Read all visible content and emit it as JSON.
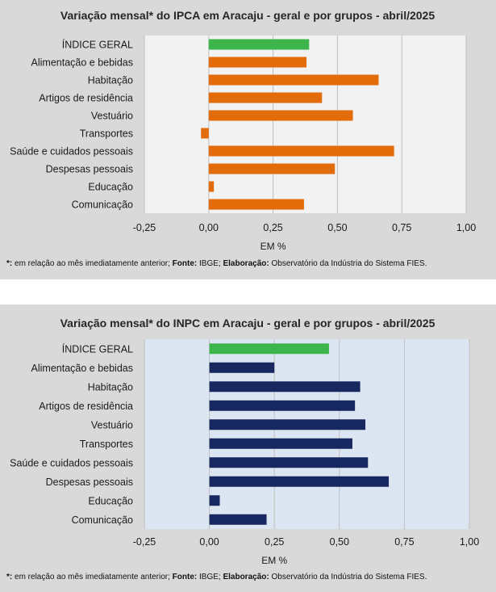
{
  "colors": {
    "ipca_plot_bg": "#f2f2f2",
    "inpc_plot_bg": "#dce6f2",
    "general_bar": "#3cb54a",
    "ipca_bar": "#e26b0a",
    "inpc_bar": "#17275f",
    "grid": "#bfbfbf"
  },
  "chart_data": [
    {
      "type": "bar",
      "orientation": "horizontal",
      "title": "Variação  mensal*  do IPCA em Aracaju  - geral e por grupos  - abril/2025",
      "xlabel": "EM %",
      "ylabel": "",
      "xlim": [
        -0.25,
        1.0
      ],
      "xticks": [
        "-0,25",
        "0,00",
        "0,25",
        "0,50",
        "0,75",
        "1,00"
      ],
      "categories": [
        "ÍNDICE GERAL",
        "Alimentação e bebidas",
        "Habitação",
        "Artigos de residência",
        "Vestuário",
        "Transportes",
        "Saúde e cuidados pessoais",
        "Despesas pessoais",
        "Educação",
        "Comunicação"
      ],
      "values": [
        0.39,
        0.38,
        0.66,
        0.44,
        0.56,
        -0.03,
        0.72,
        0.49,
        0.02,
        0.37
      ],
      "grid": true,
      "footnote": {
        "lead": "*:",
        "text1": " em relação ao mês imediatamente  anterior; ",
        "source_label": "Fonte:",
        "source": " IBGE; ",
        "credit_label": "Elaboração:",
        "credit": " Observatório da Indústria do Sistema FIES."
      }
    },
    {
      "type": "bar",
      "orientation": "horizontal",
      "title": "Variação  mensal*  do INPC em Aracaju  - geral e por grupos  - abril/2025",
      "xlabel": "EM %",
      "ylabel": "",
      "xlim": [
        -0.25,
        1.0
      ],
      "xticks": [
        "-0,25",
        "0,00",
        "0,25",
        "0,50",
        "0,75",
        "1,00"
      ],
      "categories": [
        "ÍNDICE GERAL",
        "Alimentação e bebidas",
        "Habitação",
        "Artigos de residência",
        "Vestuário",
        "Transportes",
        "Saúde e cuidados pessoais",
        "Despesas pessoais",
        "Educação",
        "Comunicação"
      ],
      "values": [
        0.46,
        0.25,
        0.58,
        0.56,
        0.6,
        0.55,
        0.61,
        0.69,
        0.04,
        0.22
      ],
      "grid": true,
      "footnote": {
        "lead": "*:",
        "text1": " em relação ao mês imediatamente  anterior; ",
        "source_label": "Fonte:",
        "source": " IBGE; ",
        "credit_label": "Elaboração:",
        "credit": " Observatório da Indústria do Sistema FIES."
      }
    }
  ]
}
